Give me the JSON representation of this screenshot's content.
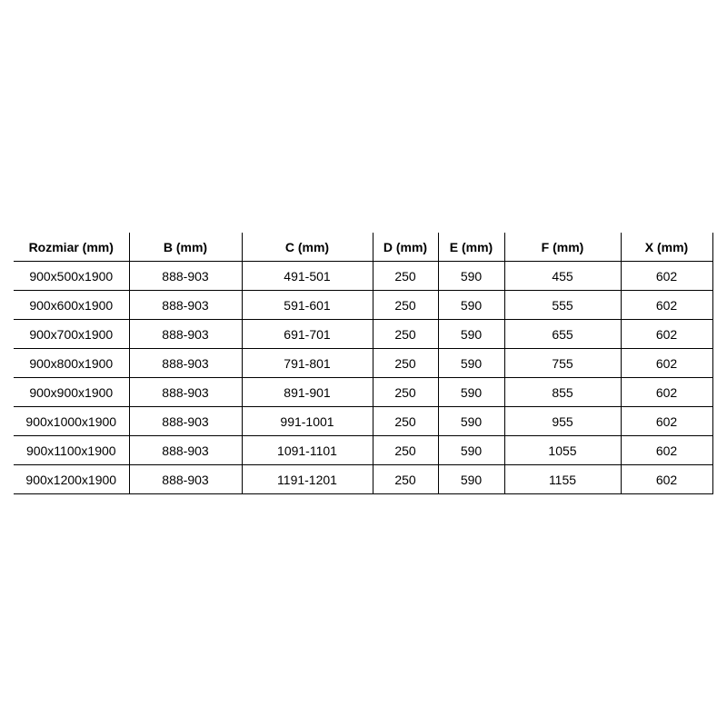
{
  "table": {
    "headers": [
      "Rozmiar (mm)",
      "B (mm)",
      "C (mm)",
      "D (mm)",
      "E (mm)",
      "F (mm)",
      "X (mm)"
    ],
    "rows": [
      [
        "900x500x1900",
        "888-903",
        "491-501",
        "250",
        "590",
        "455",
        "602"
      ],
      [
        "900x600x1900",
        "888-903",
        "591-601",
        "250",
        "590",
        "555",
        "602"
      ],
      [
        "900x700x1900",
        "888-903",
        "691-701",
        "250",
        "590",
        "655",
        "602"
      ],
      [
        "900x800x1900",
        "888-903",
        "791-801",
        "250",
        "590",
        "755",
        "602"
      ],
      [
        "900x900x1900",
        "888-903",
        "891-901",
        "250",
        "590",
        "855",
        "602"
      ],
      [
        "900x1000x1900",
        "888-903",
        "991-1001",
        "250",
        "590",
        "955",
        "602"
      ],
      [
        "900x1100x1900",
        "888-903",
        "1091-1101",
        "250",
        "590",
        "1055",
        "602"
      ],
      [
        "900x1200x1900",
        "888-903",
        "1191-1201",
        "250",
        "590",
        "1155",
        "602"
      ]
    ]
  }
}
